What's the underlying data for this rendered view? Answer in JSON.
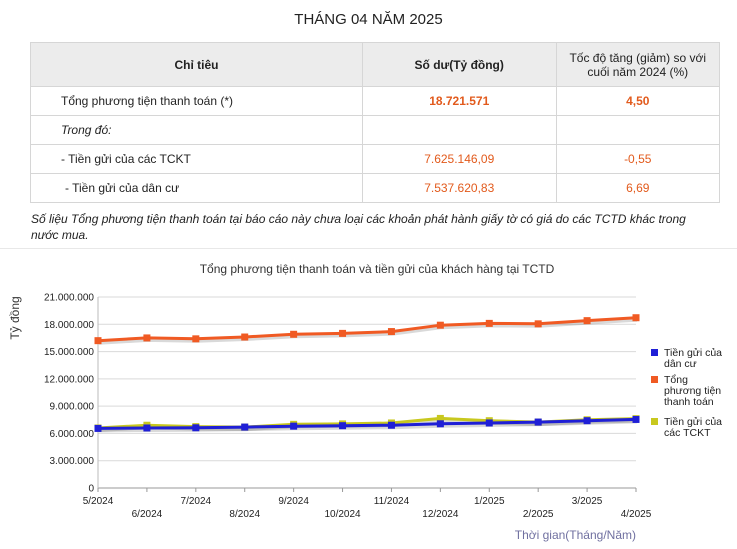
{
  "page_title": "THÁNG 04 NĂM 2025",
  "table": {
    "headers": [
      "Chỉ tiêu",
      "Số dư(Tỷ đồng)",
      "Tốc độ tăng (giảm) so với cuối năm 2024 (%)"
    ],
    "rows": [
      {
        "label": "Tổng phương tiện thanh toán (*)",
        "balance": "18.721.571",
        "growth": "4,50"
      },
      {
        "label": "Trong đó:",
        "balance": "",
        "growth": ""
      },
      {
        "label": "- Tiền gửi của các TCKT",
        "balance": "7.625.146,09",
        "growth": "-0,55"
      },
      {
        "label": " - Tiền gửi của dân cư",
        "balance": "7.537.620,83",
        "growth": "6,69"
      }
    ]
  },
  "note": "Số liệu Tổng phương tiện thanh toán tại báo cáo này chưa loại các khoản phát hành giấy tờ có giá do các TCTD khác trong nước mua.",
  "colors": {
    "accent_orange": "#e25a1c",
    "series_blue": "#1f1fd6",
    "series_orange": "#f05a23",
    "series_yellow": "#c8c81e"
  },
  "chart_data": {
    "type": "line",
    "title": "Tổng phương tiện thanh toán và tiền gửi của khách hàng tại TCTD",
    "xlabel": "Thời gian(Tháng/Năm)",
    "ylabel": "Tỷ đồng",
    "ylim": [
      0,
      21000000
    ],
    "yticks": [
      0,
      3000000,
      6000000,
      9000000,
      12000000,
      15000000,
      18000000,
      21000000
    ],
    "ytick_labels": [
      "0",
      "3.000.000",
      "6.000.000",
      "9.000.000",
      "12.000.000",
      "15.000.000",
      "18.000.000",
      "21.000.000"
    ],
    "categories": [
      "5/2024",
      "6/2024",
      "7/2024",
      "8/2024",
      "9/2024",
      "10/2024",
      "11/2024",
      "12/2024",
      "1/2025",
      "2/2025",
      "3/2025",
      "4/2025"
    ],
    "legend_position": "right",
    "series": [
      {
        "name": "Tiền gửi của dân cư",
        "color": "#1f1fd6",
        "values": [
          6550000,
          6600000,
          6620000,
          6700000,
          6800000,
          6850000,
          6900000,
          7060000,
          7150000,
          7250000,
          7400000,
          7537620
        ]
      },
      {
        "name": "Tổng phương tiện thanh toán",
        "color": "#f05a23",
        "values": [
          16200000,
          16500000,
          16400000,
          16600000,
          16900000,
          17000000,
          17200000,
          17900000,
          18100000,
          18050000,
          18400000,
          18721571
        ]
      },
      {
        "name": "Tiền gửi của các TCKT",
        "color": "#c8c81e",
        "values": [
          6600000,
          6900000,
          6750000,
          6700000,
          7000000,
          7050000,
          7150000,
          7650000,
          7400000,
          7250000,
          7500000,
          7625146
        ]
      }
    ]
  }
}
